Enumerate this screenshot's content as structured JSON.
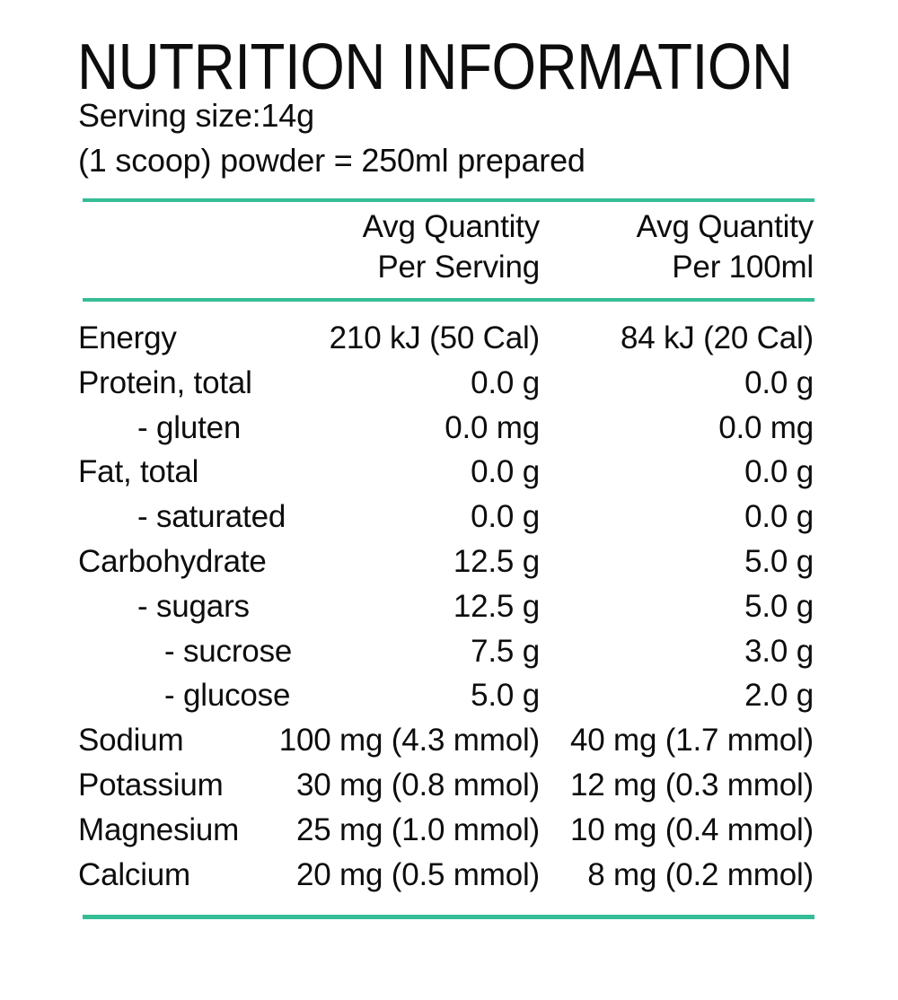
{
  "title": "NUTRITION INFORMATION",
  "serving_info": {
    "line1": "Serving size:14g",
    "line2": "(1 scoop) powder = 250ml prepared"
  },
  "table": {
    "columns": [
      {
        "line1": "Avg Quantity",
        "line2": "Per Serving"
      },
      {
        "line1": "Avg Quantity",
        "line2": "Per 100ml"
      }
    ],
    "rows": [
      {
        "label": "Energy",
        "per_serving": "210 kJ (50 Cal)",
        "per_100ml": "84 kJ (20 Cal)"
      },
      {
        "label": "Protein, total",
        "per_serving": "0.0 g",
        "per_100ml": "0.0 g"
      },
      {
        "label": "- gluten",
        "per_serving": "0.0 mg",
        "per_100ml": "0.0 mg"
      },
      {
        "label": "Fat, total",
        "per_serving": "0.0 g",
        "per_100ml": "0.0 g"
      },
      {
        "label": "- saturated",
        "per_serving": "0.0 g",
        "per_100ml": "0.0 g"
      },
      {
        "label": "Carbohydrate",
        "per_serving": "12.5 g",
        "per_100ml": "5.0 g"
      },
      {
        "label": "- sugars",
        "per_serving": "12.5 g",
        "per_100ml": "5.0 g"
      },
      {
        "label": "- sucrose",
        "per_serving": "7.5 g",
        "per_100ml": "3.0 g"
      },
      {
        "label": "- glucose",
        "per_serving": "5.0 g",
        "per_100ml": "2.0 g"
      },
      {
        "label": "Sodium",
        "per_serving": "100 mg (4.3 mmol)",
        "per_100ml": "40 mg (1.7 mmol)"
      },
      {
        "label": "Potassium",
        "per_serving": "30 mg (0.8 mmol)",
        "per_100ml": "12 mg (0.3 mmol)"
      },
      {
        "label": "Magnesium",
        "per_serving": "25 mg (1.0 mmol)",
        "per_100ml": "10 mg (0.4 mmol)"
      },
      {
        "label": "Calcium",
        "per_serving": "20 mg (0.5 mmol)",
        "per_100ml": "8 mg (0.2 mmol)"
      }
    ]
  },
  "colors": {
    "accent_line": "#35bd95",
    "text": "#0d0d0d",
    "background": "#ffffff"
  }
}
